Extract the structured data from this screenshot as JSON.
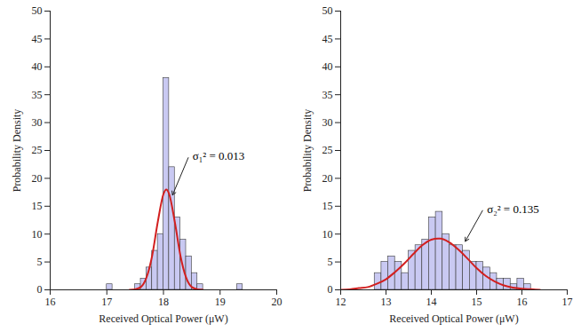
{
  "chart_data": [
    {
      "type": "histogram",
      "xlabel": "Received Optical Power (μW)",
      "ylabel": "Probability Density",
      "bins": [
        17.0,
        17.1,
        17.2,
        17.3,
        17.4,
        17.5,
        17.6,
        17.7,
        17.8,
        17.9,
        18.0,
        18.1,
        18.2,
        18.3,
        18.4,
        18.5,
        18.6,
        18.7,
        18.8,
        18.9,
        19.0,
        19.1,
        19.2,
        19.3,
        19.4
      ],
      "values": [
        1,
        0,
        0,
        0,
        0,
        1,
        2,
        4,
        7,
        10,
        38,
        22,
        13,
        9,
        6,
        3,
        1,
        0,
        0,
        0,
        0,
        0,
        0,
        1
      ],
      "color": "#c9c9f2",
      "xlim": [
        16,
        20
      ],
      "ylim": [
        0,
        50
      ],
      "xticks": [
        16,
        17,
        18,
        19,
        20
      ],
      "yticks": [
        0,
        5,
        10,
        15,
        20,
        25,
        30,
        35,
        40,
        45,
        50
      ],
      "series": [
        {
          "type": "line",
          "color": "#d21f1f",
          "x": [
            17.4,
            17.5,
            17.6,
            17.7,
            17.8,
            17.9,
            18.0,
            18.05,
            18.1,
            18.2,
            18.3,
            18.4,
            18.5,
            18.6,
            18.7
          ],
          "values": [
            0.0,
            0.1,
            0.5,
            2.2,
            6.1,
            12.2,
            17.2,
            18.0,
            17.2,
            12.2,
            6.1,
            2.2,
            0.5,
            0.1,
            0.0
          ]
        }
      ],
      "annotations": [
        {
          "text": "σ₁² = 0.013",
          "x": 18.45,
          "y": 24,
          "arrow_x": 18.16,
          "arrow_y": 17
        }
      ]
    },
    {
      "type": "histogram",
      "xlabel": "Received Optical Power (μW)",
      "ylabel": "Probability Density",
      "bins": [
        12.75,
        12.9,
        13.05,
        13.2,
        13.35,
        13.5,
        13.65,
        13.8,
        13.95,
        14.1,
        14.25,
        14.4,
        14.55,
        14.7,
        14.85,
        15.0,
        15.15,
        15.3,
        15.45,
        15.6,
        15.75,
        15.9,
        16.05,
        16.2
      ],
      "values": [
        3,
        5,
        6,
        5,
        3,
        7,
        8,
        9,
        13,
        14,
        10,
        8,
        8,
        7,
        5,
        5,
        4,
        3,
        2,
        2,
        1,
        2,
        1
      ],
      "color": "#c9c9f2",
      "xlim": [
        12,
        17
      ],
      "ylim": [
        0,
        50
      ],
      "xticks": [
        12,
        13,
        14,
        15,
        16,
        17
      ],
      "yticks": [
        0,
        5,
        10,
        15,
        20,
        25,
        30,
        35,
        40,
        45,
        50
      ],
      "series": [
        {
          "type": "line",
          "color": "#d21f1f",
          "x": [
            12.0,
            12.2,
            12.4,
            12.6,
            12.8,
            13.0,
            13.2,
            13.4,
            13.6,
            13.8,
            14.0,
            14.15,
            14.2,
            14.4,
            14.6,
            14.8,
            15.0,
            15.2,
            15.4,
            15.6,
            15.8,
            16.0,
            16.2,
            16.4
          ],
          "values": [
            0.0,
            0.1,
            0.3,
            0.5,
            1.1,
            1.9,
            3.2,
            4.7,
            6.4,
            8.0,
            9.0,
            9.2,
            9.2,
            8.5,
            7.2,
            5.6,
            3.9,
            2.5,
            1.5,
            0.8,
            0.4,
            0.2,
            0.1,
            0.0
          ]
        }
      ],
      "annotations": [
        {
          "text": "σ₂² = 0.135",
          "x": 15.15,
          "y": 14.5,
          "arrow_x": 14.75,
          "arrow_y": 8.7
        }
      ]
    }
  ]
}
